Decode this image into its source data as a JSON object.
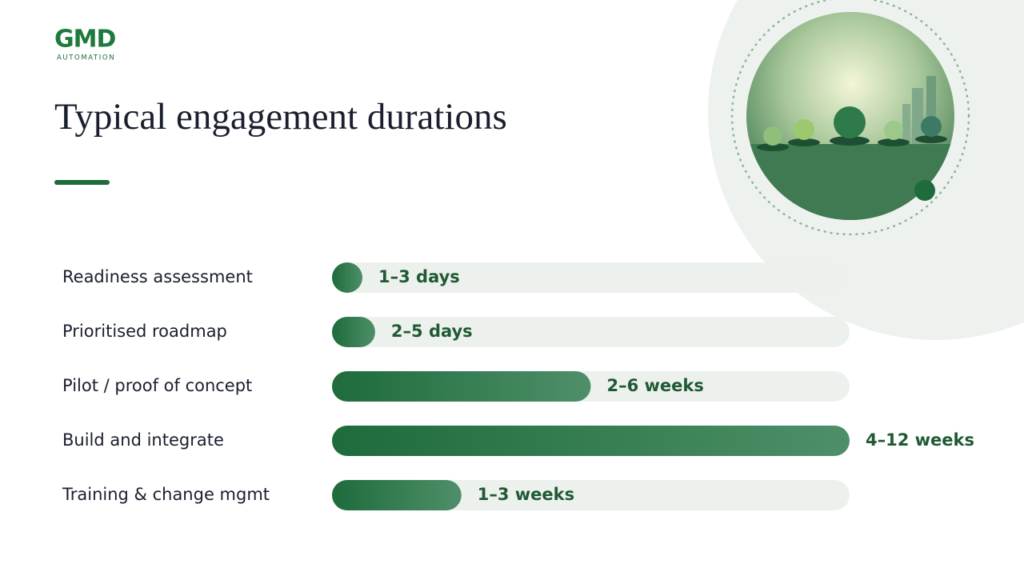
{
  "logo": {
    "name": "GMD",
    "tagline": "AUTOMATION"
  },
  "chart_data": {
    "type": "bar",
    "orientation": "horizontal",
    "title": "Typical engagement durations",
    "categories": [
      "Readiness assessment",
      "Prioritised roadmap",
      "Pilot / proof of concept",
      "Build and integrate",
      "Training & change mgmt"
    ],
    "values": [
      0.6,
      1,
      6,
      12,
      3
    ],
    "value_labels": [
      "1–3 days",
      "2–5 days",
      "2–6 weeks",
      "4–12 weeks",
      "1–3 weeks"
    ],
    "xlim": [
      0,
      12
    ],
    "color": "#1e6b3c"
  }
}
